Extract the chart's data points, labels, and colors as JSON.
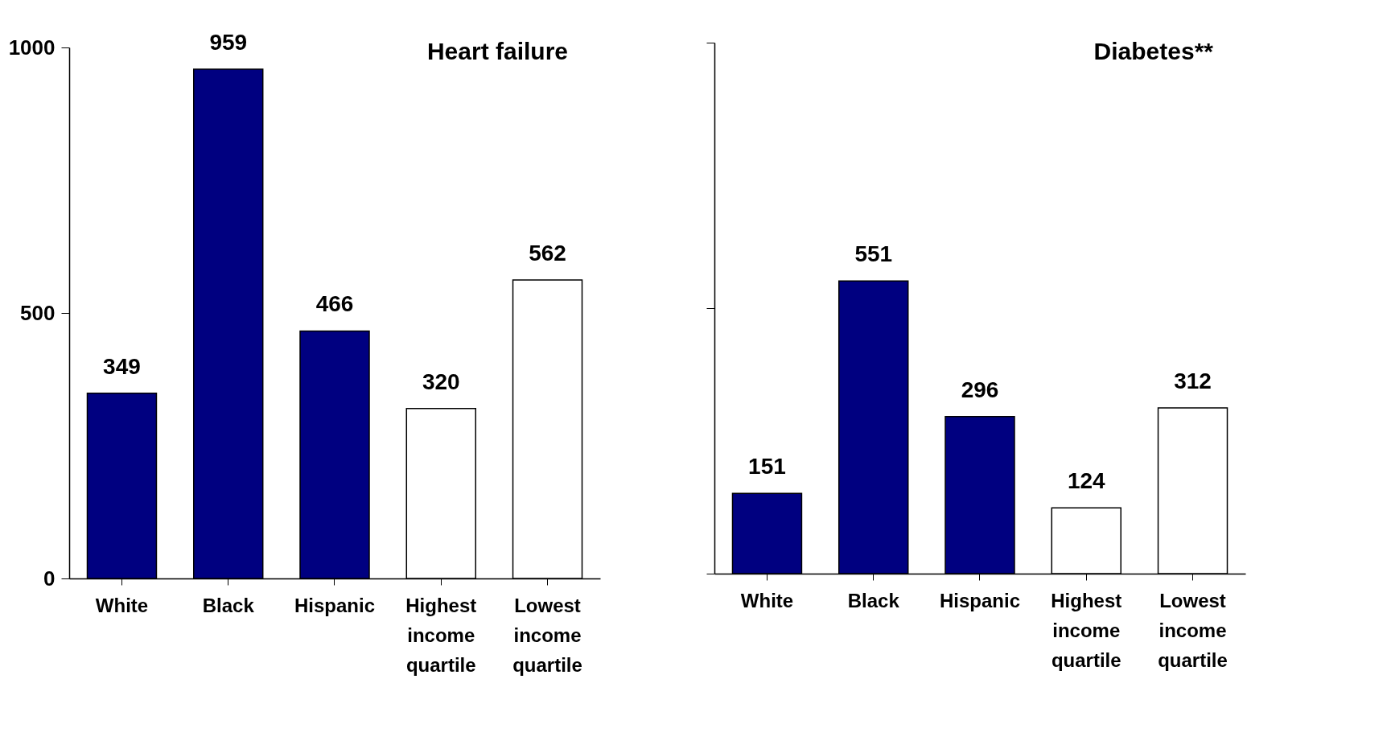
{
  "chart_data": [
    {
      "type": "bar",
      "title": "Heart failure",
      "categories": [
        "White",
        "Black",
        "Hispanic",
        "Highest income quartile",
        "Lowest income quartile"
      ],
      "values": [
        349,
        959,
        466,
        320,
        562
      ],
      "colors": [
        "#000080",
        "#000080",
        "#000080",
        "#ffffff",
        "#ffffff"
      ],
      "ylim": [
        0,
        1000
      ],
      "yticks": [
        0,
        500,
        1000
      ],
      "data_labels": true,
      "grid": false
    },
    {
      "type": "bar",
      "title": "Diabetes**",
      "categories": [
        "White",
        "Black",
        "Hispanic",
        "Highest income quartile",
        "Lowest income quartile"
      ],
      "values": [
        151,
        551,
        296,
        124,
        312
      ],
      "colors": [
        "#000080",
        "#000080",
        "#000080",
        "#ffffff",
        "#ffffff"
      ],
      "ylim": [
        0,
        1000
      ],
      "yticks": [
        {
          "value": 0,
          "label": null
        },
        {
          "value": 500,
          "label": null
        },
        {
          "value": 1000,
          "label": null
        }
      ],
      "data_labels": true,
      "grid": false
    }
  ]
}
